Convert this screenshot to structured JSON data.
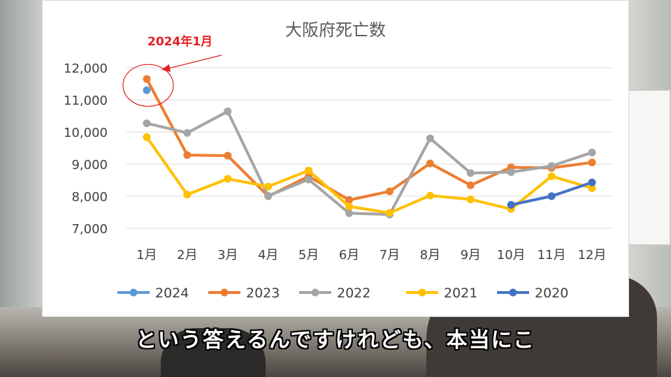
{
  "subtitle": "という答えるんですけれども、本当にこ",
  "annotation": {
    "text": "2024年1月",
    "color": "#e02020"
  },
  "chart_data": {
    "type": "line",
    "title": "大阪府死亡数",
    "categories": [
      "1月",
      "2月",
      "3月",
      "4月",
      "5月",
      "6月",
      "7月",
      "8月",
      "9月",
      "10月",
      "11月",
      "12月"
    ],
    "ylim": [
      7000,
      12000
    ],
    "yticks": [
      7000,
      8000,
      9000,
      10000,
      11000,
      12000
    ],
    "ytick_labels": [
      "7,000",
      "8,000",
      "9,000",
      "10,000",
      "11,000",
      "12,000"
    ],
    "grid": true,
    "legend_position": "bottom",
    "series": [
      {
        "name": "2024",
        "color": "#5b9bd5",
        "values": [
          11300,
          null,
          null,
          null,
          null,
          null,
          null,
          null,
          null,
          null,
          null,
          null
        ]
      },
      {
        "name": "2023",
        "color": "#ed7d31",
        "values": [
          11650,
          9280,
          9260,
          8000,
          8620,
          7880,
          8150,
          9020,
          8340,
          8900,
          8880,
          9050
        ]
      },
      {
        "name": "2022",
        "color": "#a5a5a5",
        "values": [
          10270,
          9970,
          10640,
          8010,
          8520,
          7470,
          7430,
          9800,
          8720,
          8750,
          8940,
          9360
        ]
      },
      {
        "name": "2021",
        "color": "#ffc000",
        "values": [
          9840,
          8050,
          8540,
          8300,
          8800,
          7680,
          7480,
          8020,
          7900,
          7600,
          8620,
          8250
        ]
      },
      {
        "name": "2020",
        "color": "#4472c4",
        "values": [
          null,
          null,
          null,
          null,
          null,
          null,
          null,
          null,
          null,
          7730,
          8000,
          8430
        ]
      }
    ]
  }
}
